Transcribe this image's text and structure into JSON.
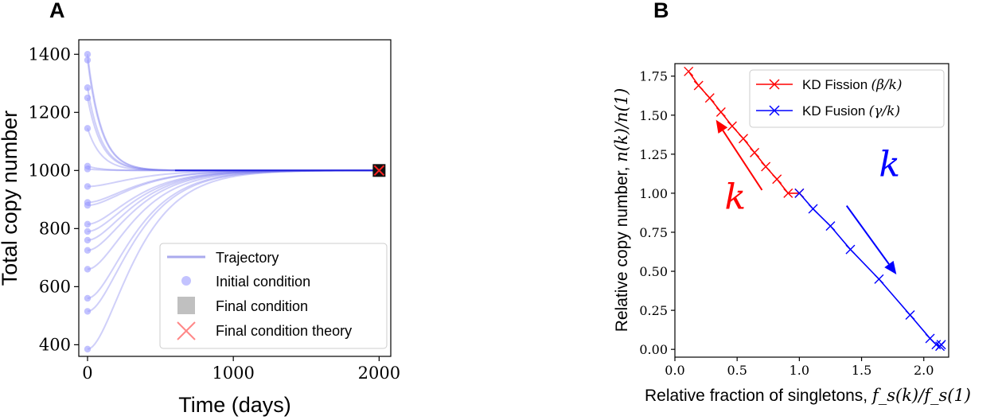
{
  "chart_data": [
    {
      "type": "line",
      "panel_label": "A",
      "xlabel": "Time (days)",
      "ylabel": "Total copy number",
      "xlim": [
        -60,
        2080
      ],
      "ylim": [
        360,
        1450
      ],
      "xticks": [
        0,
        1000,
        2000
      ],
      "yticks": [
        400,
        600,
        800,
        1000,
        1200,
        1400
      ],
      "grid": false,
      "legend_position": "lower-right",
      "legend": [
        {
          "label": "Trajectory",
          "marker": "line",
          "color": "#7777ee"
        },
        {
          "label": "Initial condition",
          "marker": "circle",
          "color": "#aaaaff"
        },
        {
          "label": "Final condition",
          "marker": "square",
          "color": "#c0c0c0"
        },
        {
          "label": "Final condition theory",
          "marker": "x",
          "color": "#ff8888"
        }
      ],
      "steady_state": 1000,
      "final_time": 2000,
      "final_point": {
        "x": 2000,
        "y": 1000
      },
      "initial_conditions": [
        1400,
        1380,
        1285,
        1250,
        1145,
        1015,
        1005,
        945,
        890,
        880,
        815,
        790,
        760,
        725,
        660,
        560,
        515,
        385
      ]
    },
    {
      "type": "line",
      "panel_label": "B",
      "xlabel": "Relative fraction of singletons, ",
      "xlabel_math": "f_s(k)/f_s(1)",
      "ylabel": "Relative copy number, ",
      "ylabel_math": "n(k)/n(1)",
      "xlim": [
        0.0,
        2.2
      ],
      "ylim": [
        -0.05,
        1.83
      ],
      "xticks": [
        "0.0",
        "0.5",
        "1.0",
        "1.5",
        "2.0"
      ],
      "yticks": [
        "0.00",
        "0.25",
        "0.50",
        "0.75",
        "1.00",
        "1.25",
        "1.50",
        "1.75"
      ],
      "grid": false,
      "legend_position": "top-right",
      "series": [
        {
          "name": "KD Fission",
          "name_math": "(β/k)",
          "color": "#ff0000",
          "marker": "x",
          "x": [
            0.11,
            0.19,
            0.28,
            0.37,
            0.46,
            0.55,
            0.64,
            0.73,
            0.82,
            0.91,
            1.0
          ],
          "y": [
            1.78,
            1.69,
            1.61,
            1.52,
            1.43,
            1.35,
            1.26,
            1.17,
            1.09,
            1.0,
            1.0
          ]
        },
        {
          "name": "KD Fusion",
          "name_math": "(γ/k)",
          "color": "#0000ff",
          "marker": "x",
          "x": [
            1.0,
            1.11,
            1.25,
            1.41,
            1.64,
            1.89,
            2.05,
            2.1,
            2.13,
            2.14
          ],
          "y": [
            1.0,
            0.9,
            0.79,
            0.64,
            0.45,
            0.22,
            0.07,
            0.03,
            0.02,
            0.03
          ]
        }
      ],
      "annotations": [
        {
          "text": "k",
          "color": "#ff0000",
          "arrow_from": [
            0.7,
            1.02
          ],
          "arrow_to": [
            0.33,
            1.47
          ]
        },
        {
          "text": "k",
          "color": "#0000ff",
          "arrow_from": [
            1.38,
            0.92
          ],
          "arrow_to": [
            1.78,
            0.48
          ]
        }
      ]
    }
  ]
}
